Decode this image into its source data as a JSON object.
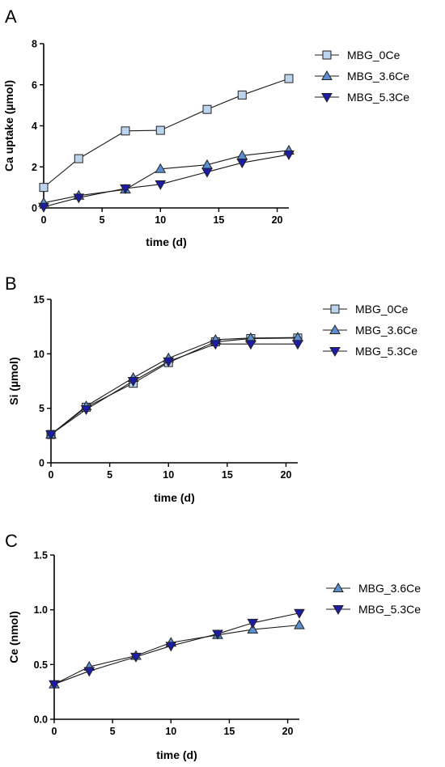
{
  "colors": {
    "MBG_0Ce": "#bcd3ee",
    "MBG_3.6Ce": "#5b8fd0",
    "MBG_5.3Ce": "#1c1ca6",
    "axis": "#000000"
  },
  "chart_data": [
    {
      "panel": "A",
      "type": "line",
      "xlabel": "time (d)",
      "ylabel": "Ca uptake (µmol)",
      "xlim": [
        0,
        21
      ],
      "ylim": [
        0,
        8
      ],
      "xticks": [
        0,
        5,
        10,
        15,
        20
      ],
      "yticks": [
        0,
        2,
        4,
        6,
        8
      ],
      "x": [
        0,
        3,
        7,
        10,
        14,
        17,
        21
      ],
      "legend_position": "right",
      "series": [
        {
          "name": "MBG_0Ce",
          "marker": "square",
          "values": [
            1.0,
            2.4,
            3.75,
            3.78,
            4.8,
            5.5,
            6.3
          ]
        },
        {
          "name": "MBG_3.6Ce",
          "marker": "triangle-up",
          "values": [
            0.25,
            0.6,
            0.9,
            1.9,
            2.1,
            2.55,
            2.8
          ]
        },
        {
          "name": "MBG_5.3Ce",
          "marker": "triangle-down",
          "values": [
            0.05,
            0.5,
            0.95,
            1.15,
            1.75,
            2.2,
            2.6
          ]
        }
      ]
    },
    {
      "panel": "B",
      "type": "line",
      "xlabel": "time (d)",
      "ylabel": "Si (µmol)",
      "xlim": [
        0,
        21
      ],
      "ylim": [
        0,
        15
      ],
      "xticks": [
        0,
        5,
        10,
        15,
        20
      ],
      "yticks": [
        0,
        5,
        10,
        15
      ],
      "x": [
        0,
        3,
        7,
        10,
        14,
        17,
        21
      ],
      "legend_position": "right",
      "series": [
        {
          "name": "MBG_0Ce",
          "marker": "square",
          "values": [
            2.6,
            5.1,
            7.3,
            9.2,
            11.1,
            11.4,
            11.45
          ]
        },
        {
          "name": "MBG_3.6Ce",
          "marker": "triangle-up",
          "values": [
            2.6,
            5.2,
            7.8,
            9.6,
            11.3,
            11.45,
            11.5
          ]
        },
        {
          "name": "MBG_5.3Ce",
          "marker": "triangle-down",
          "values": [
            2.6,
            4.9,
            7.5,
            9.3,
            10.9,
            10.9,
            10.9
          ]
        }
      ]
    },
    {
      "panel": "C",
      "type": "line",
      "xlabel": "time (d)",
      "ylabel": "Ce (nmol)",
      "xlim": [
        0,
        21
      ],
      "ylim": [
        0,
        1.5
      ],
      "xticks": [
        0,
        5,
        10,
        15,
        20
      ],
      "yticks": [
        0.0,
        0.5,
        1.0,
        1.5
      ],
      "ytick_labels": [
        "0.0",
        "0.5",
        "1.0",
        "1.5"
      ],
      "x": [
        0,
        3,
        7,
        10,
        14,
        17,
        21
      ],
      "legend_position": "right",
      "series": [
        {
          "name": "MBG_3.6Ce",
          "marker": "triangle-up",
          "values": [
            0.32,
            0.48,
            0.58,
            0.7,
            0.77,
            0.82,
            0.86
          ]
        },
        {
          "name": "MBG_5.3Ce",
          "marker": "triangle-down",
          "values": [
            0.32,
            0.44,
            0.57,
            0.67,
            0.78,
            0.88,
            0.97
          ]
        }
      ]
    }
  ]
}
